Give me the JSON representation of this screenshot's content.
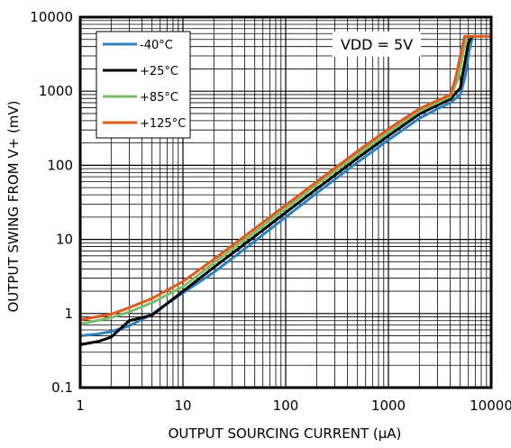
{
  "chart_data": {
    "type": "line",
    "title": "",
    "xlabel": "OUTPUT SOURCING CURRENT (µA)",
    "ylabel": "OUTPUT SWING FROM V+ (mV)",
    "xscale": "log",
    "yscale": "log",
    "xlim": [
      1,
      10000
    ],
    "ylim": [
      0.1,
      10000
    ],
    "x_ticks": [
      "1",
      "10",
      "100",
      "1000",
      "10000"
    ],
    "y_ticks": [
      "0.1",
      "1",
      "10",
      "100",
      "1000",
      "10000"
    ],
    "grid": true,
    "legend_position": "top-left",
    "annotation": "VDD = 5V",
    "series": [
      {
        "name": "-40°C",
        "color": "#2e7fc0",
        "points": [
          [
            1,
            0.5
          ],
          [
            1.5,
            0.53
          ],
          [
            2,
            0.57
          ],
          [
            3,
            0.68
          ],
          [
            5,
            0.98
          ],
          [
            10,
            1.9
          ],
          [
            20,
            3.6
          ],
          [
            50,
            9.5
          ],
          [
            100,
            20
          ],
          [
            200,
            42
          ],
          [
            500,
            110
          ],
          [
            1000,
            220
          ],
          [
            2000,
            430
          ],
          [
            3000,
            580
          ],
          [
            4000,
            700
          ],
          [
            5000,
            900
          ],
          [
            5600,
            1600
          ],
          [
            6100,
            3500
          ],
          [
            6600,
            5500
          ]
        ]
      },
      {
        "name": "+25°C",
        "color": "#000000",
        "points": [
          [
            1,
            0.38
          ],
          [
            1.5,
            0.42
          ],
          [
            2,
            0.48
          ],
          [
            3,
            0.8
          ],
          [
            4,
            0.88
          ],
          [
            5,
            0.95
          ],
          [
            10,
            2.0
          ],
          [
            20,
            4.2
          ],
          [
            50,
            11
          ],
          [
            100,
            23
          ],
          [
            200,
            48
          ],
          [
            500,
            125
          ],
          [
            1000,
            250
          ],
          [
            2000,
            490
          ],
          [
            3000,
            650
          ],
          [
            4000,
            780
          ],
          [
            5000,
            1100
          ],
          [
            5500,
            2300
          ],
          [
            6000,
            4500
          ],
          [
            6500,
            5500
          ]
        ]
      },
      {
        "name": "+85°C",
        "color": "#7cbc6e",
        "points": [
          [
            1,
            0.72
          ],
          [
            2,
            0.88
          ],
          [
            3,
            1.05
          ],
          [
            5,
            1.4
          ],
          [
            10,
            2.3
          ],
          [
            20,
            4.8
          ],
          [
            50,
            12.5
          ],
          [
            100,
            26
          ],
          [
            200,
            55
          ],
          [
            500,
            140
          ],
          [
            1000,
            280
          ],
          [
            2000,
            540
          ],
          [
            3000,
            700
          ],
          [
            4000,
            850
          ],
          [
            4800,
            1500
          ],
          [
            5300,
            3200
          ],
          [
            5800,
            5500
          ]
        ]
      },
      {
        "name": "+125°C",
        "color": "#e05a1c",
        "points": [
          [
            1,
            0.82
          ],
          [
            2,
            0.98
          ],
          [
            3,
            1.2
          ],
          [
            5,
            1.6
          ],
          [
            10,
            2.7
          ],
          [
            20,
            5.4
          ],
          [
            50,
            14
          ],
          [
            100,
            29
          ],
          [
            200,
            60
          ],
          [
            500,
            155
          ],
          [
            1000,
            310
          ],
          [
            2000,
            580
          ],
          [
            3000,
            750
          ],
          [
            4000,
            900
          ],
          [
            4500,
            1500
          ],
          [
            5000,
            3000
          ],
          [
            5500,
            5500
          ],
          [
            10000,
            5500
          ]
        ]
      }
    ]
  }
}
